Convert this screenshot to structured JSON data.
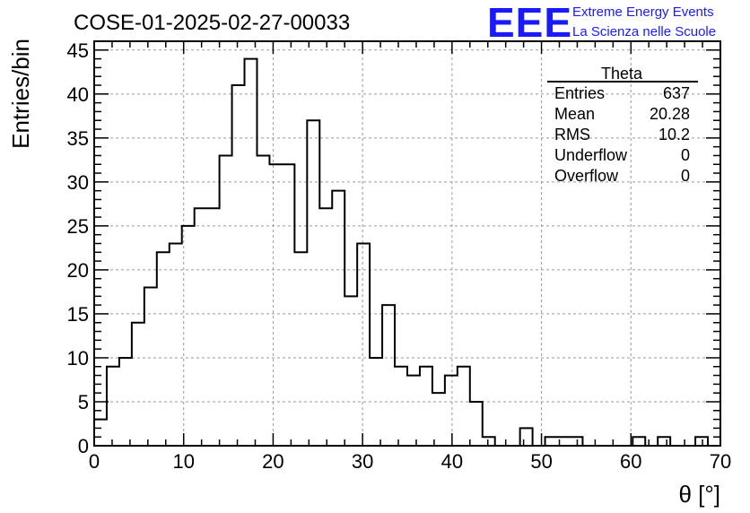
{
  "header": {
    "title": "COSE-01-2025-02-27-00033",
    "logo_mark": "EEE",
    "logo_line1": "Extreme Energy Events",
    "logo_line2": "La Scienza nelle Scuole",
    "logo_color": "#1a1aff"
  },
  "stats": {
    "name": "Theta",
    "rows": [
      {
        "label": "Entries",
        "value": "637"
      },
      {
        "label": "Mean",
        "value": "20.28"
      },
      {
        "label": "RMS",
        "value": "10.2"
      },
      {
        "label": "Underflow",
        "value": "0"
      },
      {
        "label": "Overflow",
        "value": "0"
      }
    ]
  },
  "chart_data": {
    "type": "bar",
    "style": "step-histogram",
    "xlabel": "θ [°]",
    "ylabel": "Entries/bin",
    "xlim": [
      0,
      70
    ],
    "ylim": [
      0,
      46
    ],
    "grid": true,
    "bin_width": 1.4,
    "x_ticks": [
      0,
      10,
      20,
      30,
      40,
      50,
      60,
      70
    ],
    "y_ticks": [
      0,
      5,
      10,
      15,
      20,
      25,
      30,
      35,
      40,
      45
    ],
    "values": [
      3,
      9,
      10,
      14,
      18,
      22,
      23,
      25,
      27,
      27,
      33,
      41,
      44,
      33,
      32,
      32,
      22,
      37,
      27,
      29,
      17,
      23,
      10,
      16,
      9,
      8,
      9,
      6,
      8,
      9,
      5,
      1,
      0,
      0,
      2,
      0,
      1,
      1,
      1,
      0,
      0,
      0,
      0,
      1,
      0,
      1,
      0,
      0,
      1,
      0
    ]
  }
}
